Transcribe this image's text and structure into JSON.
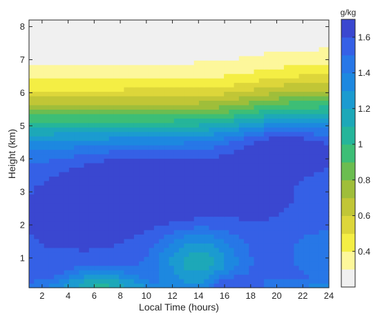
{
  "chart_data": {
    "type": "contourf",
    "xlabel": "Local Time (hours)",
    "ylabel": "Height (km)",
    "xlim": [
      1,
      24
    ],
    "ylim": [
      0.1,
      8.2
    ],
    "x_ticks": [
      "2",
      "4",
      "6",
      "8",
      "10",
      "12",
      "14",
      "16",
      "18",
      "20",
      "22",
      "24"
    ],
    "y_ticks": [
      "1",
      "2",
      "3",
      "4",
      "5",
      "6",
      "7",
      "8"
    ],
    "colorbar": {
      "unit": "g/kg",
      "range": [
        0.2,
        1.7
      ],
      "ticks": [
        "0.4",
        "0.6",
        "0.8",
        "1",
        "1.2",
        "1.4",
        "1.6"
      ],
      "levels": [
        0.2,
        0.3,
        0.4,
        0.5,
        0.6,
        0.7,
        0.8,
        0.9,
        1.0,
        1.1,
        1.2,
        1.3,
        1.4,
        1.5,
        1.6,
        1.7
      ],
      "colors": [
        "#f0f0f0",
        "#fdf79b",
        "#f4ee44",
        "#ddd63a",
        "#c1c636",
        "#9fbe3a",
        "#6bbd50",
        "#3dbe76",
        "#25b59a",
        "#1da8b8",
        "#1b9bd0",
        "#1d88e0",
        "#2777e7",
        "#3560e6",
        "#3a47d0",
        "#352ba8"
      ]
    },
    "field_description": "Specific humidity (g/kg) versus local time and height; moist core 1.6-1.7 g/kg between about 2 and 4.5 km, drying to 0.2-0.4 g/kg above 7.5 km",
    "grid": false
  },
  "colors": {
    "axis": "#262626",
    "background": "#ffffff"
  }
}
